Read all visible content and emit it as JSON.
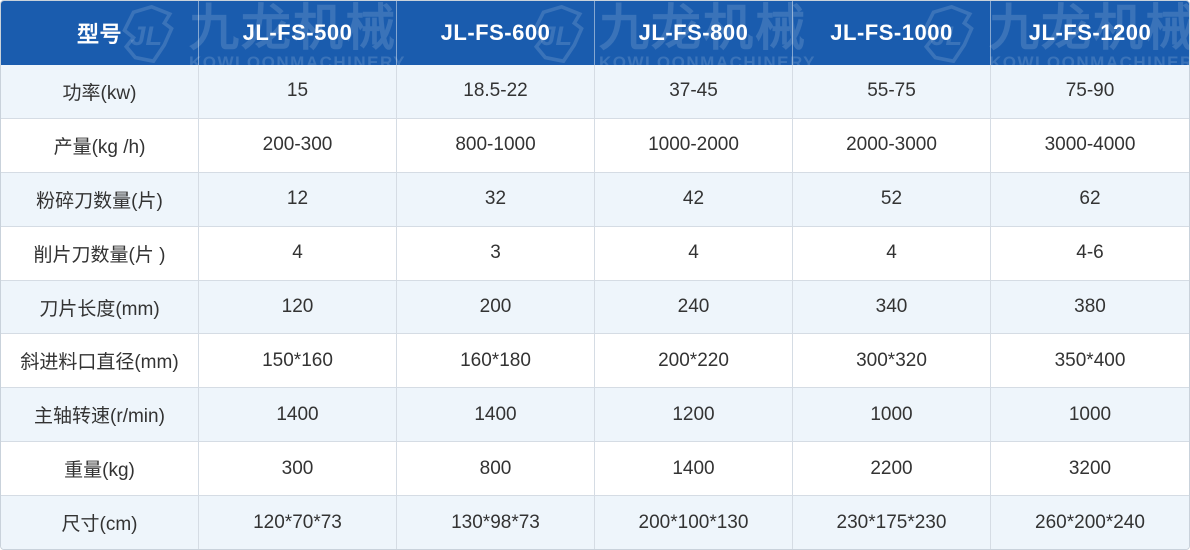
{
  "brand": {
    "watermark_text_cn": "九龙机械",
    "watermark_text_en": "KOWLOONMACHINERY",
    "logo_icon": "jl-monogram"
  },
  "colors": {
    "header_bg": "#1a5cae",
    "header_text": "#ffffff",
    "row_alt_bg": "#eef5fb",
    "row_bg": "#ffffff",
    "border": "#d5dce4",
    "cell_text": "#333333"
  },
  "chart_data": {
    "type": "table",
    "title": "",
    "columns": [
      "型号",
      "JL-FS-500",
      "JL-FS-600",
      "JL-FS-800",
      "JL-FS-1000",
      "JL-FS-1200"
    ],
    "rows": [
      {
        "label": "功率(kw)",
        "values": [
          "15",
          "18.5-22",
          "37-45",
          "55-75",
          "75-90"
        ]
      },
      {
        "label": "产量(kg /h)",
        "values": [
          "200-300",
          "800-1000",
          "1000-2000",
          "2000-3000",
          "3000-4000"
        ]
      },
      {
        "label": "粉碎刀数量(片)",
        "values": [
          "12",
          "32",
          "42",
          "52",
          "62"
        ]
      },
      {
        "label": "削片刀数量(片 )",
        "values": [
          "4",
          "3",
          "4",
          "4",
          "4-6"
        ]
      },
      {
        "label": "刀片长度(mm)",
        "values": [
          "120",
          "200",
          "240",
          "340",
          "380"
        ]
      },
      {
        "label": "斜进料口直径(mm)",
        "values": [
          "150*160",
          "160*180",
          "200*220",
          "300*320",
          "350*400"
        ]
      },
      {
        "label": "主轴转速(r/min)",
        "values": [
          "1400",
          "1400",
          "1200",
          "1000",
          "1000"
        ]
      },
      {
        "label": "重量(kg)",
        "values": [
          "300",
          "800",
          "1400",
          "2200",
          "3200"
        ]
      },
      {
        "label": "尺寸(cm)",
        "values": [
          "120*70*73",
          "130*98*73",
          "200*100*130",
          "230*175*230",
          "260*200*240"
        ]
      }
    ]
  }
}
